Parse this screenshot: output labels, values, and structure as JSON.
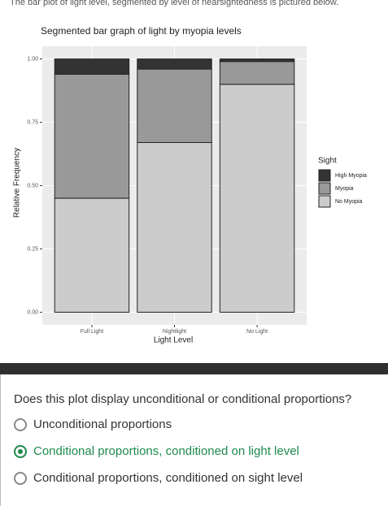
{
  "header": {
    "text": "The bar plot of light level, segmented by level of nearsightedness is pictured below."
  },
  "chart_data": {
    "type": "stacked_bar",
    "title": "Segmented bar graph of light by myopia levels",
    "x_label": "Light Level",
    "y_label": "Relative Frequency",
    "categories": [
      "Full Light",
      "Nightlight",
      "No Light"
    ],
    "series": [
      {
        "name": "High Myopia",
        "color": "#333333",
        "values": [
          0.06,
          0.04,
          0.01
        ]
      },
      {
        "name": "Myopia",
        "color": "#999999",
        "values": [
          0.49,
          0.29,
          0.09
        ]
      },
      {
        "name": "No Myopia",
        "color": "#cccccc",
        "values": [
          0.45,
          0.67,
          0.9
        ]
      }
    ],
    "legend_title": "Sight",
    "legend_position": "right",
    "ylim": [
      -0.05,
      1.05
    ],
    "yticks": [
      {
        "value": 0,
        "label": "0.00"
      },
      {
        "value": 0.25,
        "label": "0.25"
      },
      {
        "value": 0.5,
        "label": "0.50"
      },
      {
        "value": 0.75,
        "label": "0.75"
      },
      {
        "value": 1,
        "label": "1.00"
      }
    ],
    "grid": true
  },
  "question": {
    "text": "Does this plot display unconditional or conditional proportions?",
    "options": [
      "Unconditional proportions",
      "Conditional proportions, conditioned on light level",
      "Conditional proportions, conditioned on sight level"
    ],
    "selected": 1
  }
}
